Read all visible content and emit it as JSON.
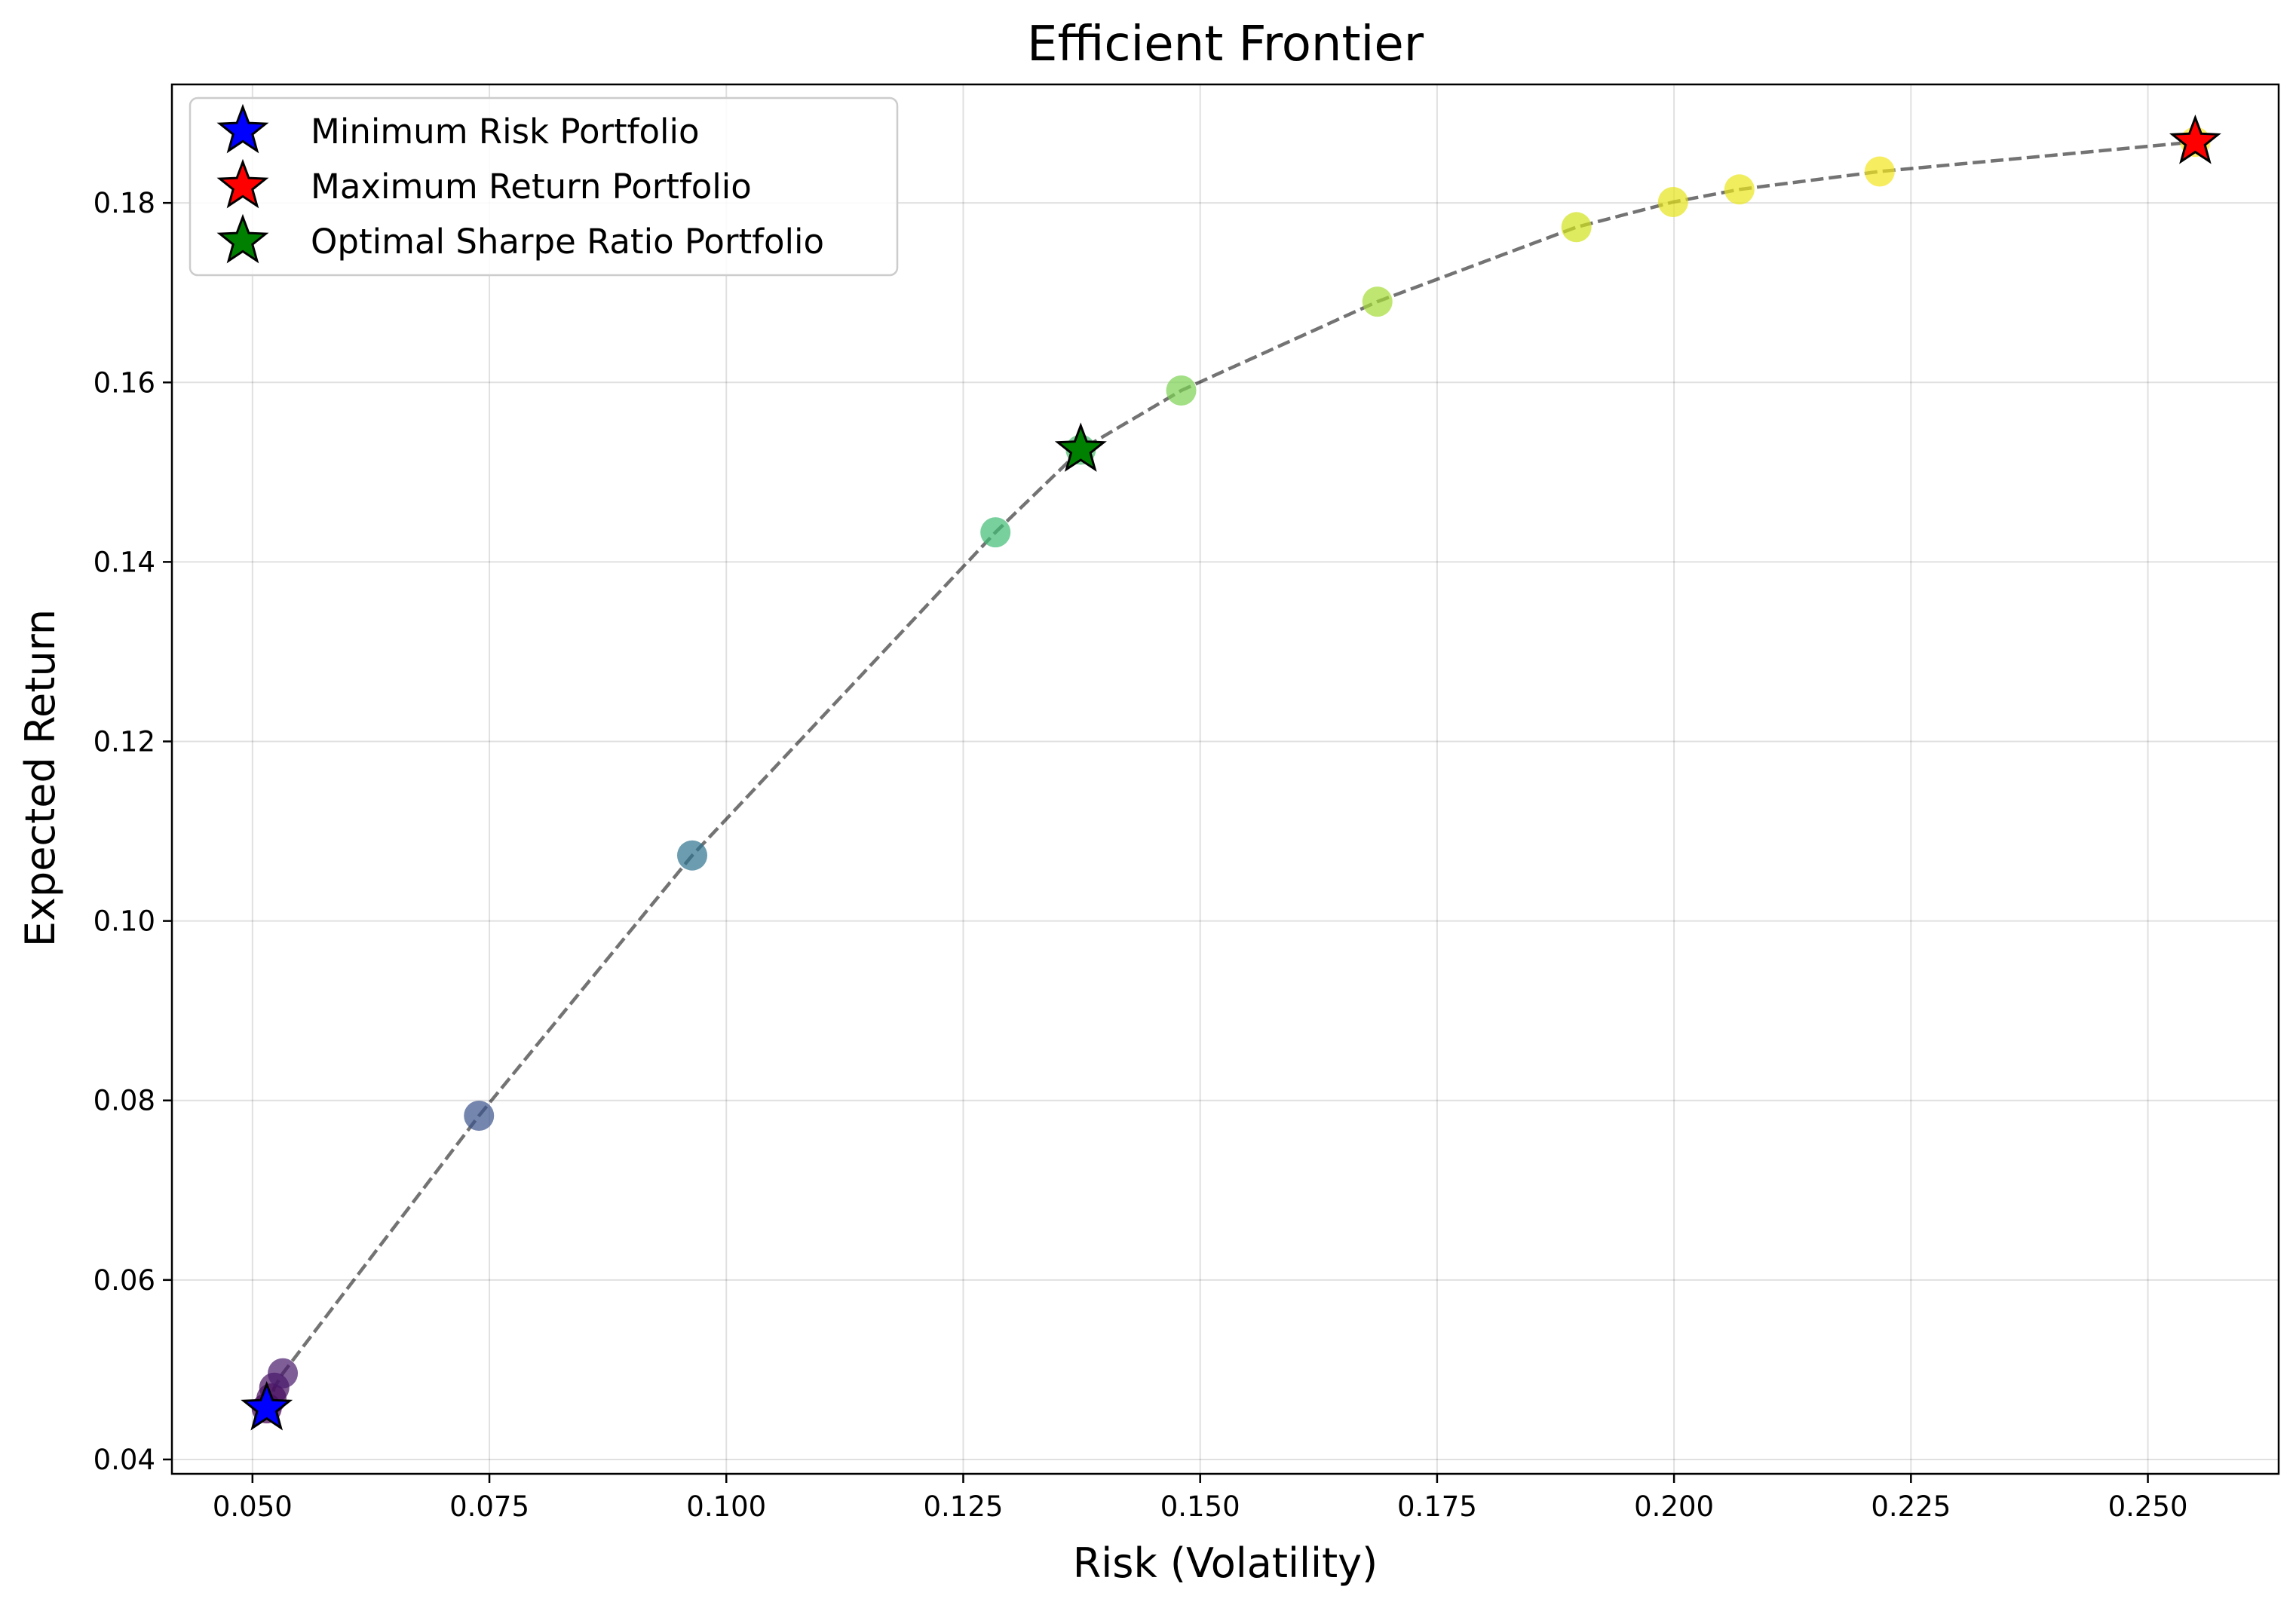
{
  "chart_data": {
    "type": "scatter",
    "title": "Efficient Frontier",
    "xlabel": "Risk (Volatility)",
    "ylabel": "Expected Return",
    "xlim": [
      0.0415,
      0.2638
    ],
    "ylim": [
      0.0384,
      0.1932
    ],
    "xticks": [
      0.05,
      0.075,
      0.1,
      0.125,
      0.15,
      0.175,
      0.2,
      0.225,
      0.25
    ],
    "xtick_labels": [
      "0.050",
      "0.075",
      "0.100",
      "0.125",
      "0.150",
      "0.175",
      "0.200",
      "0.225",
      "0.250"
    ],
    "yticks": [
      0.04,
      0.06,
      0.08,
      0.1,
      0.12,
      0.14,
      0.16,
      0.18
    ],
    "ytick_labels": [
      "0.04",
      "0.06",
      "0.08",
      "0.10",
      "0.12",
      "0.14",
      "0.16",
      "0.18"
    ],
    "grid": true,
    "legend_position": "top-left",
    "colormap": "viridis",
    "frontier_line": {
      "style": "dashed",
      "color": "#777777"
    },
    "frontier_points": [
      {
        "x": 0.0515,
        "y": 0.0457,
        "color": "#440154"
      },
      {
        "x": 0.052,
        "y": 0.0468,
        "color": "#46085c"
      },
      {
        "x": 0.0523,
        "y": 0.048,
        "color": "#471063"
      },
      {
        "x": 0.0532,
        "y": 0.0496,
        "color": "#481a6c"
      },
      {
        "x": 0.0739,
        "y": 0.0783,
        "color": "#3b528b"
      },
      {
        "x": 0.0964,
        "y": 0.1073,
        "color": "#2c728e"
      },
      {
        "x": 0.1284,
        "y": 0.1433,
        "color": "#3fbc73"
      },
      {
        "x": 0.1374,
        "y": 0.1525,
        "color": "#4ac16d"
      },
      {
        "x": 0.148,
        "y": 0.1591,
        "color": "#7ad151"
      },
      {
        "x": 0.1687,
        "y": 0.169,
        "color": "#a5db36"
      },
      {
        "x": 0.1897,
        "y": 0.1773,
        "color": "#d2e21b"
      },
      {
        "x": 0.1999,
        "y": 0.1801,
        "color": "#e5e419"
      },
      {
        "x": 0.2069,
        "y": 0.1815,
        "color": "#eae51a"
      },
      {
        "x": 0.2217,
        "y": 0.1835,
        "color": "#f4e61e"
      },
      {
        "x": 0.255,
        "y": 0.1868,
        "color": "#fde725"
      }
    ],
    "highlighted": [
      {
        "name": "Minimum Risk Portfolio",
        "x": 0.0515,
        "y": 0.0457,
        "color": "#0000ff"
      },
      {
        "name": "Maximum Return Portfolio",
        "x": 0.255,
        "y": 0.1868,
        "color": "#ff0000"
      },
      {
        "name": "Optimal Sharpe Ratio Portfolio",
        "x": 0.1374,
        "y": 0.1525,
        "color": "#008000"
      }
    ]
  }
}
